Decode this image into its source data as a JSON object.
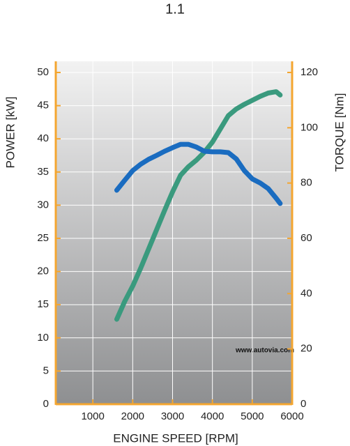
{
  "chart_data": {
    "type": "line",
    "title": "1.1",
    "x_label": "ENGINE SPEED [RPM]",
    "y_label": "POWER [kW]",
    "y2_label": "TORQUE [Nm]",
    "annotation": "www.autovia.com",
    "x": [
      1600,
      1800,
      2000,
      2200,
      2400,
      2600,
      2800,
      3000,
      3200,
      3400,
      3600,
      3800,
      4000,
      4200,
      4400,
      4600,
      4800,
      5000,
      5200,
      5400,
      5600,
      5700
    ],
    "series": [
      {
        "color": "#3a9a7e",
        "axis": "y",
        "values": [
          12.8,
          15.5,
          17.8,
          20.5,
          23.4,
          26.3,
          29.2,
          32,
          34.5,
          35.8,
          36.8,
          38,
          39.5,
          41.5,
          43.5,
          44.5,
          45.2,
          45.8,
          46.4,
          46.9,
          47.1,
          46.6
        ]
      },
      {
        "color": "#1a6cc0",
        "axis": "y2",
        "values": [
          77.4,
          81,
          84.5,
          86.8,
          88.6,
          90,
          91.5,
          92.8,
          94,
          94,
          93,
          91.5,
          91.3,
          91.3,
          91,
          88.7,
          84.5,
          81.5,
          80,
          78,
          74.5,
          72.6
        ]
      }
    ],
    "xlim": [
      0,
      6000
    ],
    "xticks": [
      1000,
      2000,
      3000,
      4000,
      5000,
      6000
    ],
    "ylim": [
      0,
      50
    ],
    "yticks": [
      0,
      5,
      10,
      15,
      20,
      25,
      30,
      35,
      40,
      45,
      50
    ],
    "y2lim": [
      0,
      120
    ],
    "y2ticks": [
      0,
      20,
      40,
      60,
      80,
      100,
      120
    ],
    "grid": true,
    "axis_color": "#f4a630"
  }
}
